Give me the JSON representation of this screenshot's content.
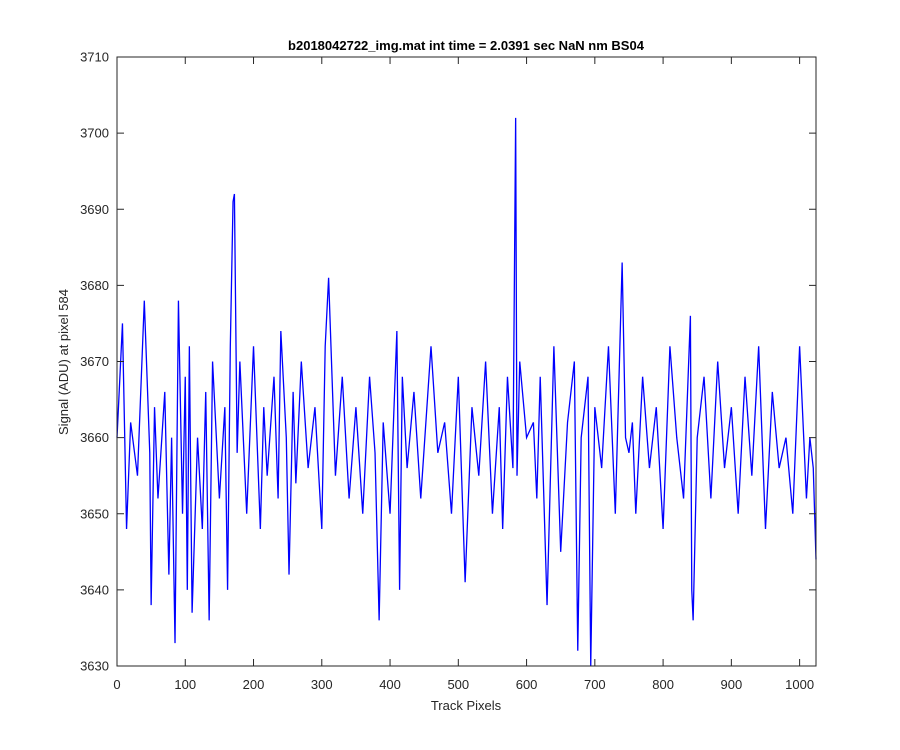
{
  "chart_data": {
    "type": "line",
    "title": "b2018042722_img.mat int time = 2.0391 sec  NaN nm BS04",
    "xlabel": "Track Pixels",
    "ylabel": "Signal (ADU) at pixel 584",
    "xlim": [
      0,
      1024
    ],
    "ylim": [
      3630,
      3710
    ],
    "xticks": [
      0,
      100,
      200,
      300,
      400,
      500,
      600,
      700,
      800,
      900,
      1000
    ],
    "yticks": [
      3630,
      3640,
      3650,
      3660,
      3670,
      3680,
      3690,
      3700,
      3710
    ],
    "grid": false,
    "line_color": "#0000ff",
    "series": [
      {
        "x": [
          0,
          8,
          14,
          20,
          30,
          40,
          48,
          50,
          55,
          60,
          70,
          76,
          80,
          85,
          90,
          96,
          100,
          103,
          106,
          110,
          118,
          125,
          130,
          135,
          140,
          150,
          158,
          162,
          166,
          170,
          172,
          176,
          180,
          190,
          200,
          210,
          215,
          220,
          230,
          236,
          240,
          248,
          252,
          258,
          262,
          270,
          280,
          290,
          300,
          305,
          310,
          320,
          330,
          340,
          350,
          360,
          370,
          378,
          384,
          390,
          400,
          410,
          414,
          418,
          425,
          435,
          445,
          460,
          470,
          480,
          490,
          500,
          510,
          520,
          530,
          540,
          550,
          560,
          565,
          572,
          580,
          584,
          586,
          590,
          600,
          610,
          615,
          620,
          630,
          640,
          650,
          660,
          670,
          675,
          680,
          690,
          694,
          700,
          710,
          720,
          730,
          740,
          745,
          750,
          755,
          760,
          770,
          780,
          790,
          800,
          810,
          820,
          830,
          840,
          842,
          844,
          850,
          860,
          870,
          880,
          890,
          900,
          910,
          920,
          930,
          940,
          950,
          960,
          970,
          980,
          990,
          1000,
          1010,
          1015,
          1020,
          1024
        ],
        "y": [
          3660,
          3675,
          3648,
          3662,
          3655,
          3678,
          3658,
          3638,
          3664,
          3652,
          3666,
          3642,
          3660,
          3633,
          3678,
          3650,
          3668,
          3640,
          3672,
          3637,
          3660,
          3648,
          3666,
          3636,
          3670,
          3652,
          3664,
          3640,
          3672,
          3691,
          3692,
          3658,
          3670,
          3650,
          3672,
          3648,
          3664,
          3655,
          3668,
          3652,
          3674,
          3660,
          3642,
          3666,
          3654,
          3670,
          3656,
          3664,
          3648,
          3672,
          3681,
          3655,
          3668,
          3652,
          3664,
          3650,
          3668,
          3658,
          3636,
          3662,
          3650,
          3674,
          3640,
          3668,
          3656,
          3666,
          3652,
          3672,
          3658,
          3662,
          3650,
          3668,
          3641,
          3664,
          3655,
          3670,
          3650,
          3664,
          3648,
          3668,
          3656,
          3702,
          3655,
          3670,
          3660,
          3662,
          3652,
          3668,
          3638,
          3672,
          3645,
          3662,
          3670,
          3632,
          3660,
          3668,
          3630,
          3664,
          3656,
          3672,
          3650,
          3683,
          3660,
          3658,
          3662,
          3650,
          3668,
          3656,
          3664,
          3648,
          3672,
          3660,
          3652,
          3676,
          3640,
          3636,
          3660,
          3668,
          3652,
          3670,
          3656,
          3664,
          3650,
          3668,
          3655,
          3672,
          3648,
          3666,
          3656,
          3660,
          3650,
          3672,
          3652,
          3660,
          3656,
          3644
        ]
      }
    ]
  }
}
